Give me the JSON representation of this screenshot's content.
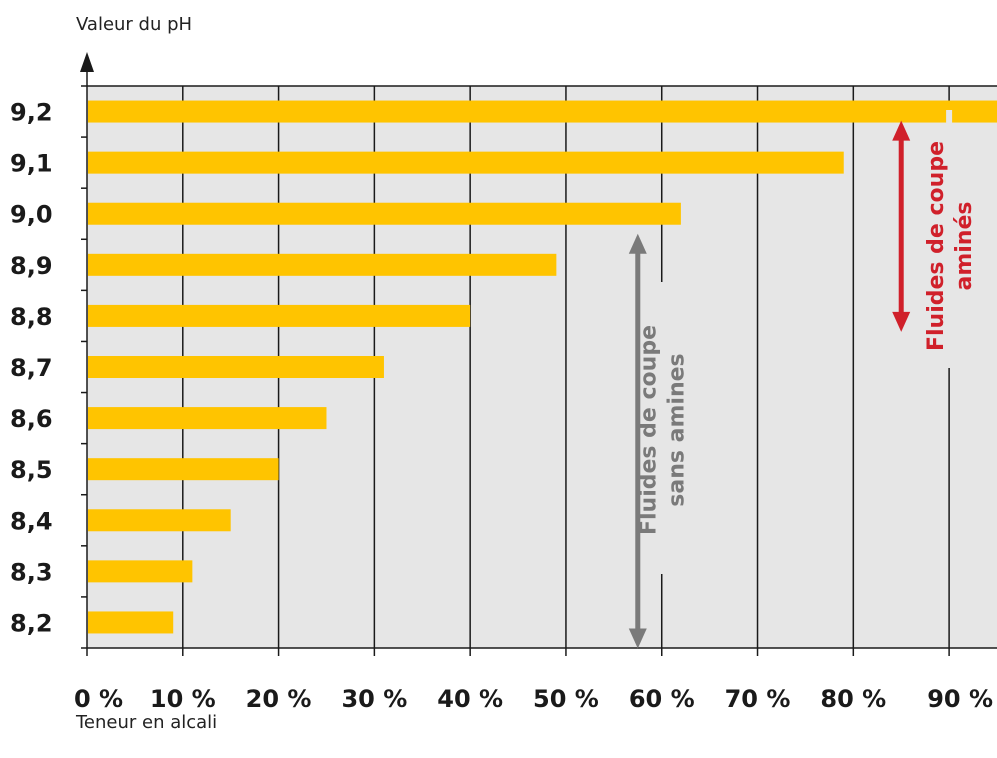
{
  "chart_data": {
    "type": "bar",
    "orientation": "horizontal",
    "ylabel": "Valeur du pH",
    "xlabel": "Teneur en alcali",
    "categories": [
      "8,2",
      "8,3",
      "8,4",
      "8,5",
      "8,6",
      "8,7",
      "8,8",
      "8,9",
      "9,0",
      "9,1",
      "9,2"
    ],
    "values": [
      9,
      11,
      15,
      20,
      25,
      31,
      40,
      49,
      62,
      79,
      95
    ],
    "xlim": [
      0,
      95
    ],
    "xticks": [
      "0 %",
      "10 %",
      "20 %",
      "30 %",
      "40 %",
      "50 %",
      "60 %",
      "70 %",
      "80 %",
      "90 %"
    ],
    "grid": true,
    "colors": {
      "bar": "#ffc400",
      "plot_background": "#e6e6e6",
      "grid": "#1a1a1a",
      "grey_annotation": "#7a7a7a",
      "red_annotation": "#d0202a"
    },
    "annotations": {
      "sans_amines": {
        "line1": "Fluides de coupe",
        "line2": "sans amines",
        "from": "8,2",
        "to": "9,0",
        "x": 57.5
      },
      "amines": {
        "line1": "Fluides de coupe",
        "line2": "aminés",
        "from": "8,8",
        "to": "9,1",
        "x": 85
      }
    }
  }
}
